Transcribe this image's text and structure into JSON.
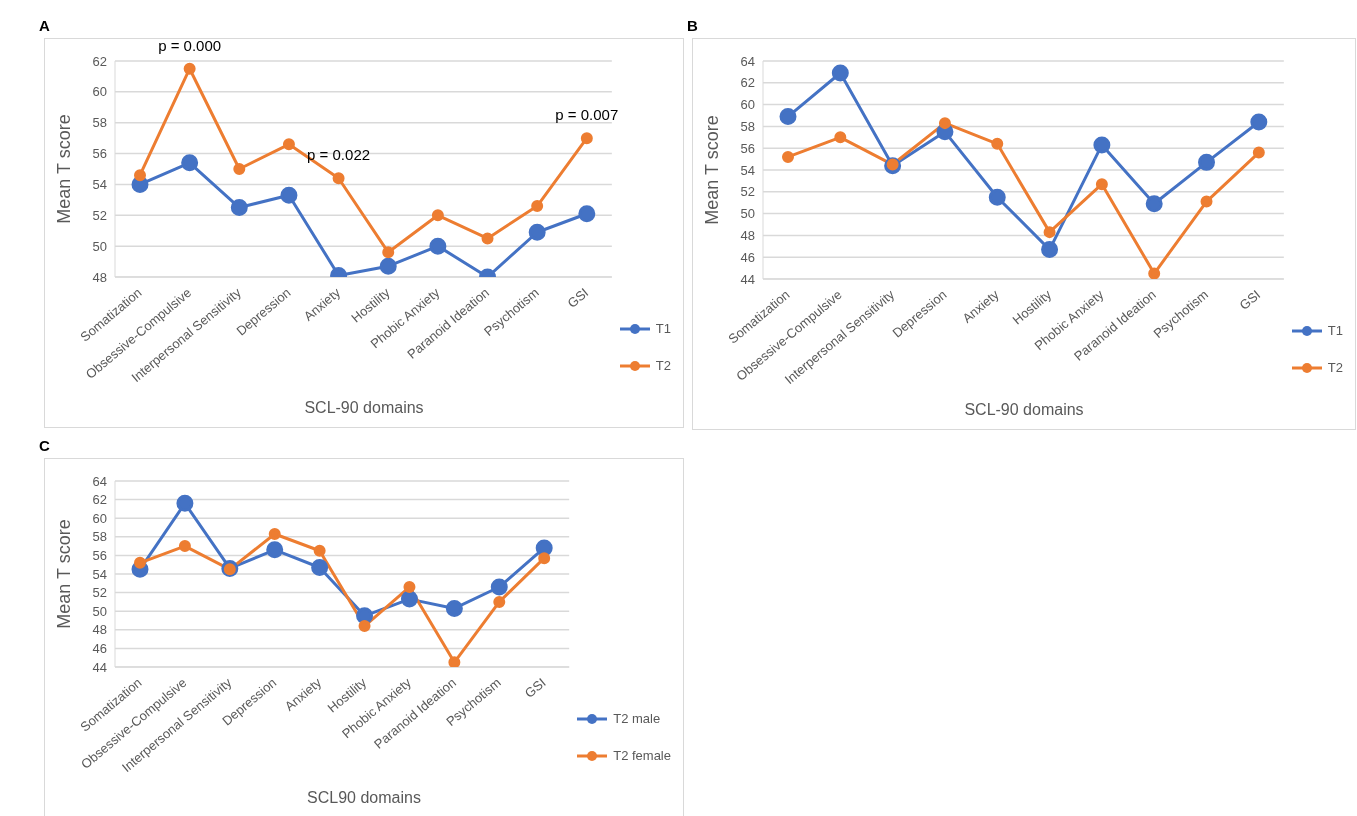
{
  "chart_data": [
    {
      "type": "line",
      "title": "A",
      "xlabel": "SCL-90 domains",
      "ylabel": "Mean T score",
      "categories": [
        "Somatization",
        "Obsessive-Compulsive",
        "Interpersonal Sensitivity",
        "Depression",
        "Anxiety",
        "Hostility",
        "Phobic Anxiety",
        "Paranoid Ideation",
        "Psychotism",
        "GSI"
      ],
      "series": [
        {
          "name": "T1",
          "color": "#4472c4",
          "values": [
            54.0,
            55.4,
            52.5,
            53.3,
            48.1,
            48.7,
            50.0,
            48.0,
            50.9,
            52.1
          ]
        },
        {
          "name": "T2",
          "color": "#ed7d31",
          "values": [
            54.6,
            61.5,
            55.0,
            56.6,
            54.4,
            49.6,
            52.0,
            50.5,
            52.6,
            57.0
          ]
        }
      ],
      "ylim": [
        48,
        62
      ],
      "yticks": [
        48,
        50,
        52,
        54,
        56,
        58,
        60,
        62
      ],
      "grid": "y",
      "legend": "bottom right",
      "marker": "circle",
      "line_style": "solid",
      "annotations": [
        {
          "text": "p = 0.000",
          "x": "Obsessive-Compulsive",
          "y": 61.5
        },
        {
          "text": "p = 0.022",
          "x": "Anxiety",
          "y": 54.4
        },
        {
          "text": "p = 0.007",
          "x": "GSI",
          "y": 57.0
        }
      ]
    },
    {
      "type": "line",
      "title": "B",
      "xlabel": "SCL-90 domains",
      "ylabel": "Mean T score",
      "categories": [
        "Somatization",
        "Obsessive-Compulsive",
        "Interpersonal Sensitivity",
        "Depression",
        "Anxiety",
        "Hostility",
        "Phobic Anxiety",
        "Paranoid Ideation",
        "Psychotism",
        "GSI"
      ],
      "series": [
        {
          "name": "T1",
          "color": "#4472c4",
          "values": [
            58.9,
            62.9,
            54.4,
            57.5,
            51.5,
            46.7,
            56.3,
            50.9,
            54.7,
            58.4
          ]
        },
        {
          "name": "T2",
          "color": "#ed7d31",
          "values": [
            55.2,
            57.0,
            54.5,
            58.3,
            56.4,
            48.3,
            52.7,
            44.5,
            51.1,
            55.6
          ]
        }
      ],
      "ylim": [
        44,
        64
      ],
      "yticks": [
        44,
        46,
        48,
        50,
        52,
        54,
        56,
        58,
        60,
        62,
        64
      ],
      "grid": "y",
      "legend": "bottom right",
      "marker": "circle",
      "line_style": "solid"
    },
    {
      "type": "line",
      "title": "C",
      "xlabel": "SCL90 domains",
      "ylabel": "Mean T score",
      "categories": [
        "Somatization",
        "Obsessive-Compulsive",
        "Interpersonal Sensitivity",
        "Depression",
        "Anxiety",
        "Hostility",
        "Phobic Anxiety",
        "Paranoid Ideation",
        "Psychotism",
        "GSI"
      ],
      "series": [
        {
          "name": "T2 male",
          "color": "#4472c4",
          "values": [
            54.5,
            61.6,
            54.6,
            56.6,
            54.7,
            49.5,
            51.3,
            50.3,
            52.6,
            56.8
          ]
        },
        {
          "name": "T2 female",
          "color": "#ed7d31",
          "values": [
            55.2,
            57.0,
            54.5,
            58.3,
            56.5,
            48.4,
            52.6,
            44.5,
            51.0,
            55.7
          ]
        }
      ],
      "ylim": [
        44,
        64
      ],
      "yticks": [
        44,
        46,
        48,
        50,
        52,
        54,
        56,
        58,
        60,
        62,
        64
      ],
      "grid": "y",
      "legend": "bottom right",
      "marker": "circle",
      "line_style": "solid"
    }
  ]
}
